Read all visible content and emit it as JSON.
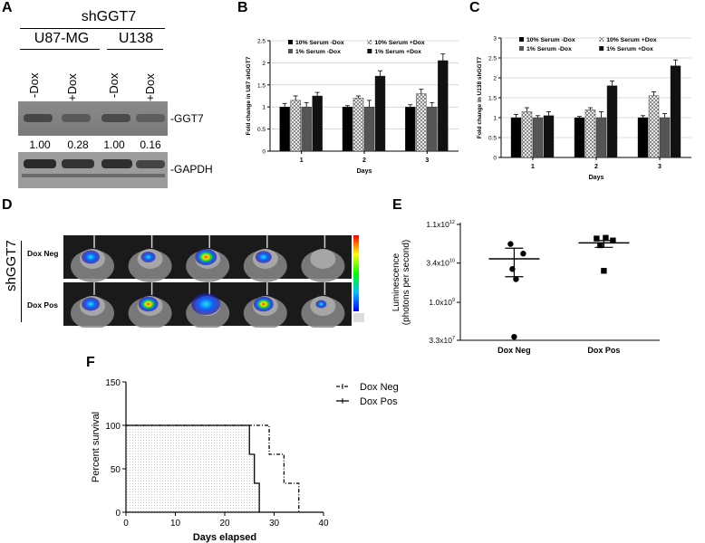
{
  "panels": {
    "a": {
      "letter": "A",
      "construct": "shGGT7",
      "cell_lines": [
        "U87-MG",
        "U138"
      ],
      "lanes": [
        "-Dox",
        "+Dox",
        "-Dox",
        "+Dox"
      ],
      "blot_labels": [
        "-GGT7",
        "-GAPDH"
      ],
      "quant": [
        "1.00",
        "0.28",
        "1.00",
        "0.16"
      ],
      "ggt7_band_intensity": [
        0.55,
        0.35,
        0.5,
        0.3
      ]
    },
    "b": {
      "letter": "B"
    },
    "c": {
      "letter": "C"
    },
    "d": {
      "letter": "D",
      "construct": "shGGT7",
      "rows": [
        "Dox Neg",
        "Dox Pos"
      ]
    },
    "e": {
      "letter": "E"
    },
    "f": {
      "letter": "F"
    }
  },
  "chart_data": [
    {
      "id": "B",
      "type": "bar",
      "categories": [
        "1",
        "2",
        "3"
      ],
      "xlabel": "Days",
      "ylabel": "Fold change in U87 shGGT7",
      "ylim": [
        0,
        2.5
      ],
      "yticks": [
        "0",
        "0.5",
        "1",
        "1.5",
        "2",
        "2.5"
      ],
      "legend_rows": [
        [
          "10% Serum -Dox",
          "10% Serum +Dox"
        ],
        [
          "1% Serum -Dox",
          "1% Serum +Dox"
        ]
      ],
      "series": [
        {
          "name": "10% Serum -Dox",
          "color": "#000000",
          "values": [
            1.0,
            1.0,
            1.0
          ],
          "errors": [
            0.08,
            0.03,
            0.05
          ]
        },
        {
          "name": "10% Serum +Dox",
          "color": "#c8c8c8",
          "pattern": "check",
          "values": [
            1.15,
            1.2,
            1.3
          ],
          "errors": [
            0.1,
            0.05,
            0.1
          ]
        },
        {
          "name": "1% Serum -Dox",
          "color": "#555555",
          "values": [
            1.0,
            1.0,
            1.0
          ],
          "errors": [
            0.1,
            0.15,
            0.1
          ]
        },
        {
          "name": "1% Serum +Dox",
          "color": "#111111",
          "values": [
            1.25,
            1.7,
            2.05
          ],
          "errors": [
            0.08,
            0.12,
            0.15
          ]
        }
      ]
    },
    {
      "id": "C",
      "type": "bar",
      "categories": [
        "1",
        "2",
        "3"
      ],
      "xlabel": "Days",
      "ylabel": "Fold change in U138 shGGT7",
      "ylim": [
        0,
        3
      ],
      "yticks": [
        "0",
        "0.5",
        "1",
        "1.5",
        "2",
        "2.5",
        "3"
      ],
      "legend_rows": [
        [
          "10% Serum -Dox",
          "10% Serum +Dox"
        ],
        [
          "1% Serum -Dox",
          "1% Serum +Dox"
        ]
      ],
      "series": [
        {
          "name": "10% Serum -Dox",
          "color": "#000000",
          "values": [
            1.0,
            1.0,
            1.0
          ],
          "errors": [
            0.08,
            0.03,
            0.05
          ]
        },
        {
          "name": "10% Serum +Dox",
          "color": "#c8c8c8",
          "pattern": "check",
          "values": [
            1.15,
            1.2,
            1.55
          ],
          "errors": [
            0.1,
            0.05,
            0.1
          ]
        },
        {
          "name": "1% Serum -Dox",
          "color": "#555555",
          "values": [
            1.0,
            1.0,
            1.0
          ],
          "errors": [
            0.05,
            0.15,
            0.1
          ]
        },
        {
          "name": "1% Serum +Dox",
          "color": "#111111",
          "values": [
            1.05,
            1.8,
            2.3
          ],
          "errors": [
            0.1,
            0.12,
            0.15
          ]
        }
      ]
    },
    {
      "id": "E",
      "type": "scatter",
      "categories": [
        "Dox Neg",
        "Dox Pos"
      ],
      "ylabel_lines": [
        "Luminescence",
        "(photons per second)"
      ],
      "scale": "log",
      "yticks": [
        {
          "value": 33000000,
          "label": "3.3x10"
        },
        {
          "value": 1000000000,
          "label": "1.0x10"
        },
        {
          "value": 34000000000,
          "label": "3.4x10"
        },
        {
          "value": 1100000000000,
          "label": "1.1x10"
        }
      ],
      "series": [
        {
          "name": "Dox Neg",
          "marker": "circle",
          "values": [
            190000000000,
            80000000000,
            20000000000,
            8000000000,
            45000000
          ]
        },
        {
          "name": "Dox Pos",
          "marker": "square",
          "values": [
            310000000000,
            330000000000,
            260000000000,
            170000000000,
            17000000000
          ]
        }
      ],
      "means": [
        50000000000,
        210000000000
      ],
      "sem_low": [
        10000000000,
        140000000000
      ],
      "sem_high": [
        130000000000,
        260000000000
      ]
    },
    {
      "id": "F",
      "type": "line",
      "subtype": "survival",
      "xlabel": "Days elapsed",
      "ylabel": "Percent survival",
      "xlim": [
        0,
        40
      ],
      "ylim": [
        0,
        150
      ],
      "xticks": [
        "0",
        "10",
        "20",
        "30",
        "40"
      ],
      "yticks": [
        "0",
        "50",
        "100",
        "150"
      ],
      "series": [
        {
          "name": "Dox Neg",
          "dash": true,
          "points": [
            [
              0,
              100
            ],
            [
              29,
              100
            ],
            [
              29,
              66.7
            ],
            [
              32,
              66.7
            ],
            [
              32,
              33.3
            ],
            [
              35,
              33.3
            ],
            [
              35,
              0
            ]
          ]
        },
        {
          "name": "Dox Pos",
          "dash": false,
          "points": [
            [
              0,
              100
            ],
            [
              25,
              100
            ],
            [
              25,
              66.7
            ],
            [
              26,
              66.7
            ],
            [
              26,
              33.3
            ],
            [
              27,
              33.3
            ],
            [
              27,
              0
            ]
          ]
        }
      ]
    }
  ]
}
